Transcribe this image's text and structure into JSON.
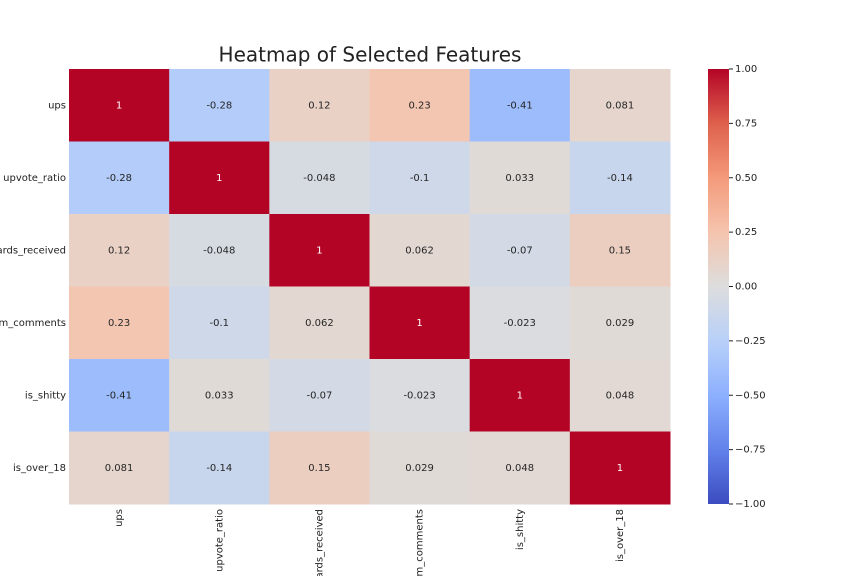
{
  "chart_data": {
    "type": "heatmap",
    "title": "Heatmap of Selected Features",
    "x_categories": [
      "ups",
      "upvote_ratio",
      "ards_received",
      "m_comments",
      "is_shitty",
      "is_over_18"
    ],
    "y_categories": [
      "ups",
      "upvote_ratio",
      "ards_received",
      "m_comments",
      "is_shitty",
      "is_over_18"
    ],
    "values": [
      [
        1,
        -0.28,
        0.12,
        0.23,
        -0.41,
        0.081
      ],
      [
        -0.28,
        1,
        -0.048,
        -0.1,
        0.033,
        -0.14
      ],
      [
        0.12,
        -0.048,
        1,
        0.062,
        -0.07,
        0.15
      ],
      [
        0.23,
        -0.1,
        0.062,
        1,
        -0.023,
        0.029
      ],
      [
        -0.41,
        0.033,
        -0.07,
        -0.023,
        1,
        0.048
      ],
      [
        0.081,
        -0.14,
        0.15,
        0.029,
        0.048,
        1
      ]
    ],
    "zlim": [
      -1,
      1
    ],
    "colorscale": [
      "#3b4cc0",
      "#6282ea",
      "#8db0fe",
      "#b8d0f9",
      "#dddddd",
      "#f5c4ad",
      "#f49a7b",
      "#de604d",
      "#b40426"
    ],
    "colorbar_ticks": [
      {
        "value": 1,
        "label": "1.00"
      },
      {
        "value": 0.75,
        "label": "0.75"
      },
      {
        "value": 0.5,
        "label": "0.50"
      },
      {
        "value": 0.25,
        "label": "0.25"
      },
      {
        "value": 0,
        "label": "0.00"
      },
      {
        "value": -0.25,
        "label": "−0.25"
      },
      {
        "value": -0.5,
        "label": "−0.50"
      },
      {
        "value": -0.75,
        "label": "−0.75"
      },
      {
        "value": -1,
        "label": "−1.00"
      }
    ]
  }
}
